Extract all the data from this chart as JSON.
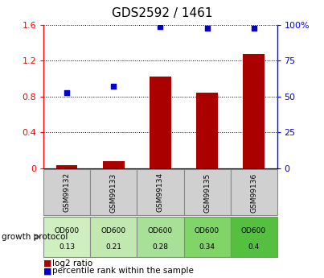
{
  "title": "GDS2592 / 1461",
  "samples": [
    "GSM99132",
    "GSM99133",
    "GSM99134",
    "GSM99135",
    "GSM99136"
  ],
  "log2_ratio": [
    0.03,
    0.08,
    1.02,
    0.84,
    1.28
  ],
  "percentile_rank": [
    53,
    57,
    99,
    98,
    98
  ],
  "bar_color": "#AA0000",
  "dot_color": "#0000CC",
  "ylim_left": [
    0,
    1.6
  ],
  "ylim_right": [
    0,
    100
  ],
  "yticks_left": [
    0,
    0.4,
    0.8,
    1.2,
    1.6
  ],
  "ytick_labels_left": [
    "0",
    "0.4",
    "0.8",
    "1.2",
    "1.6"
  ],
  "yticks_right": [
    0,
    25,
    50,
    75,
    100
  ],
  "ytick_labels_right": [
    "0",
    "25",
    "50",
    "75",
    "100%"
  ],
  "od600_values": [
    "0.13",
    "0.21",
    "0.28",
    "0.34",
    "0.4"
  ],
  "growth_protocol_colors": [
    "#d0efc0",
    "#c0e8b0",
    "#a8e098",
    "#80d468",
    "#55c040"
  ],
  "legend_log2": "log2 ratio",
  "legend_pct": "percentile rank within the sample",
  "growth_label": "growth protocol"
}
